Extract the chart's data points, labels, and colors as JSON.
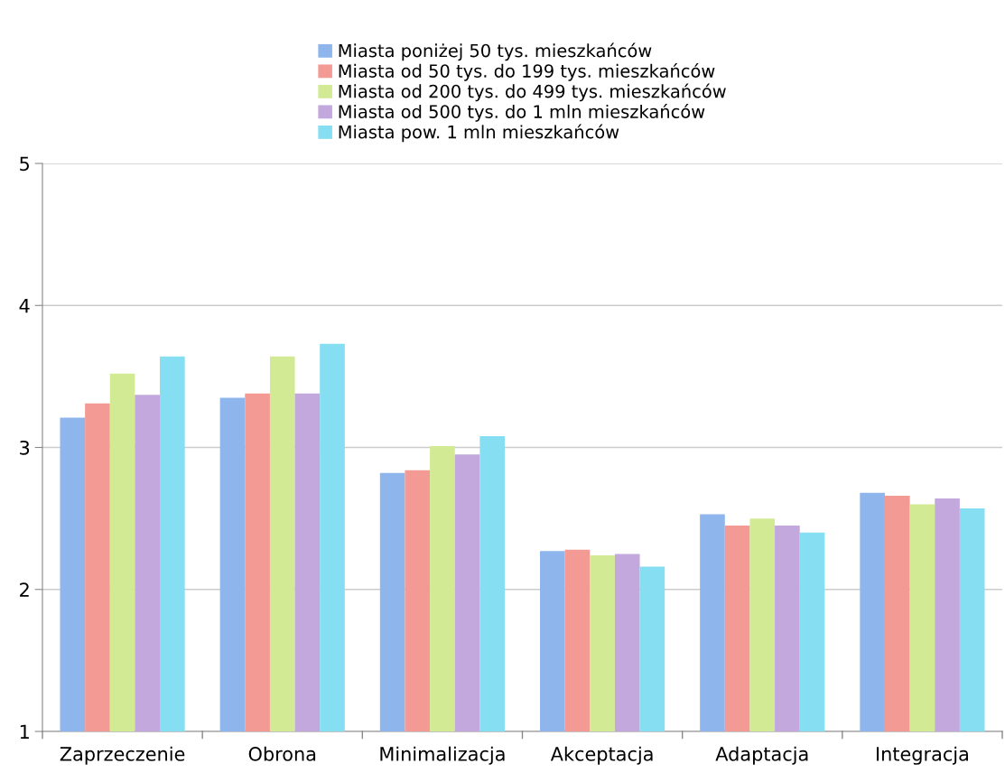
{
  "chart_data": {
    "type": "bar",
    "categories": [
      "Zaprzeczenie",
      "Obrona",
      "Minimalizacja",
      "Akceptacja",
      "Adaptacja",
      "Integracja"
    ],
    "series": [
      {
        "name": "Miasta poniżej 50 tys. mieszkańców",
        "color": "#8fb6ec",
        "values": [
          3.21,
          3.35,
          2.82,
          2.27,
          2.53,
          2.68
        ]
      },
      {
        "name": "Miasta od 50 tys. do 199 tys. mieszkańców",
        "color": "#f39a94",
        "values": [
          3.31,
          3.38,
          2.84,
          2.28,
          2.45,
          2.66
        ]
      },
      {
        "name": "Miasta od 200 tys. do 499 tys. mieszkańców",
        "color": "#d3ea94",
        "values": [
          3.52,
          3.64,
          3.01,
          2.24,
          2.5,
          2.6
        ]
      },
      {
        "name": "Miasta od 500 tys. do 1 mln mieszkańców",
        "color": "#c2a8dc",
        "values": [
          3.37,
          3.38,
          2.95,
          2.25,
          2.45,
          2.64
        ]
      },
      {
        "name": "Miasta pow. 1 mln mieszkańców",
        "color": "#86def2",
        "values": [
          3.64,
          3.73,
          3.08,
          2.16,
          2.4,
          2.57
        ]
      }
    ],
    "ylim": [
      1,
      5
    ],
    "yticks": [
      1,
      2,
      3,
      4,
      5
    ],
    "grid": "y",
    "legend": "top"
  }
}
